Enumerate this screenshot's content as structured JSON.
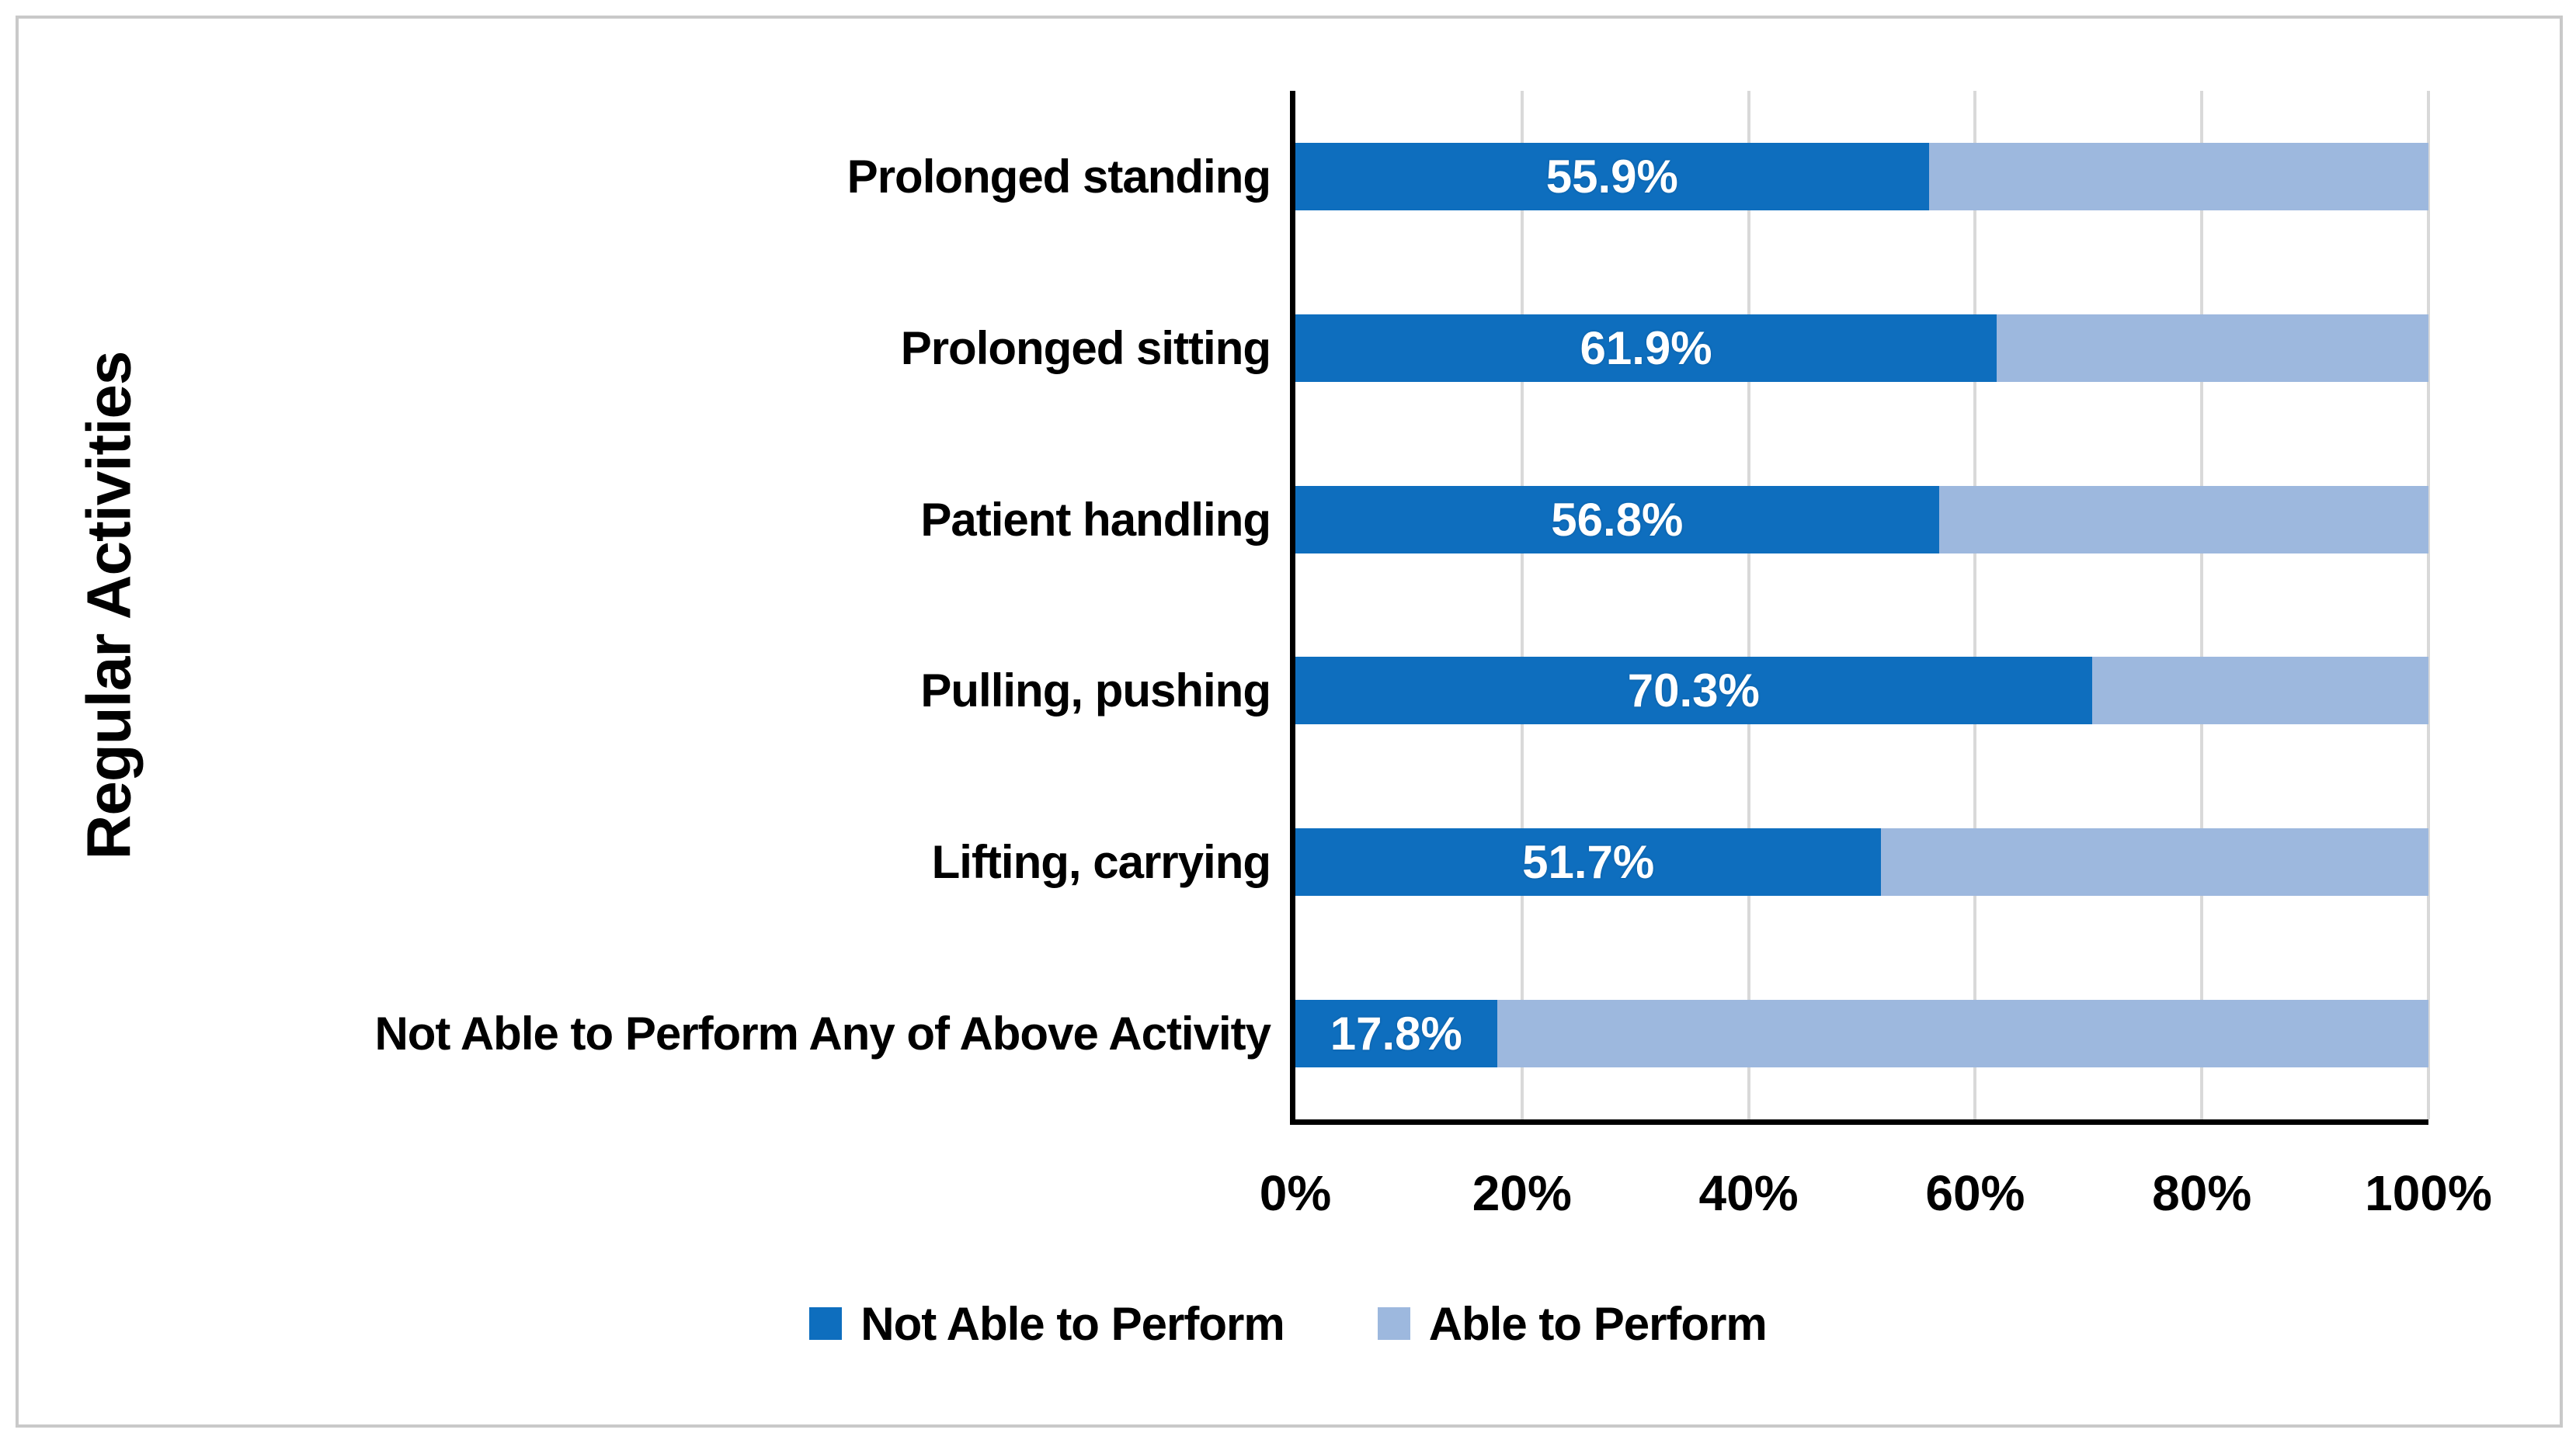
{
  "figure": {
    "frame_color": "#c9c9c9",
    "background": "#ffffff",
    "gridline_color": "#d9d9d9",
    "axis_color": "#000000"
  },
  "chart_data": {
    "type": "bar",
    "orientation": "horizontal",
    "stacked": true,
    "title": "",
    "xlabel": "",
    "ylabel": "Regular Activities",
    "categories": [
      "Prolonged standing",
      "Prolonged sitting",
      "Patient handling",
      "Pulling, pushing",
      "Lifting, carrying",
      "Not Able to Perform Any of Above Activity"
    ],
    "series": [
      {
        "name": "Not Able to Perform",
        "color": "#0e6ebe",
        "values": [
          55.9,
          61.9,
          56.8,
          70.3,
          51.7,
          17.8
        ]
      },
      {
        "name": "Able to Perform",
        "color": "#9db8de",
        "values": [
          44.1,
          38.1,
          43.2,
          29.7,
          48.3,
          82.2
        ]
      }
    ],
    "bar_labels": [
      "55.9%",
      "61.9%",
      "56.8%",
      "70.3%",
      "51.7%",
      "17.8%"
    ],
    "x_ticks": [
      "0%",
      "20%",
      "40%",
      "60%",
      "80%",
      "100%"
    ],
    "x_tick_values": [
      0,
      20,
      40,
      60,
      80,
      100
    ],
    "xlim": [
      0,
      100
    ],
    "grid": true,
    "legend_position": "bottom"
  }
}
